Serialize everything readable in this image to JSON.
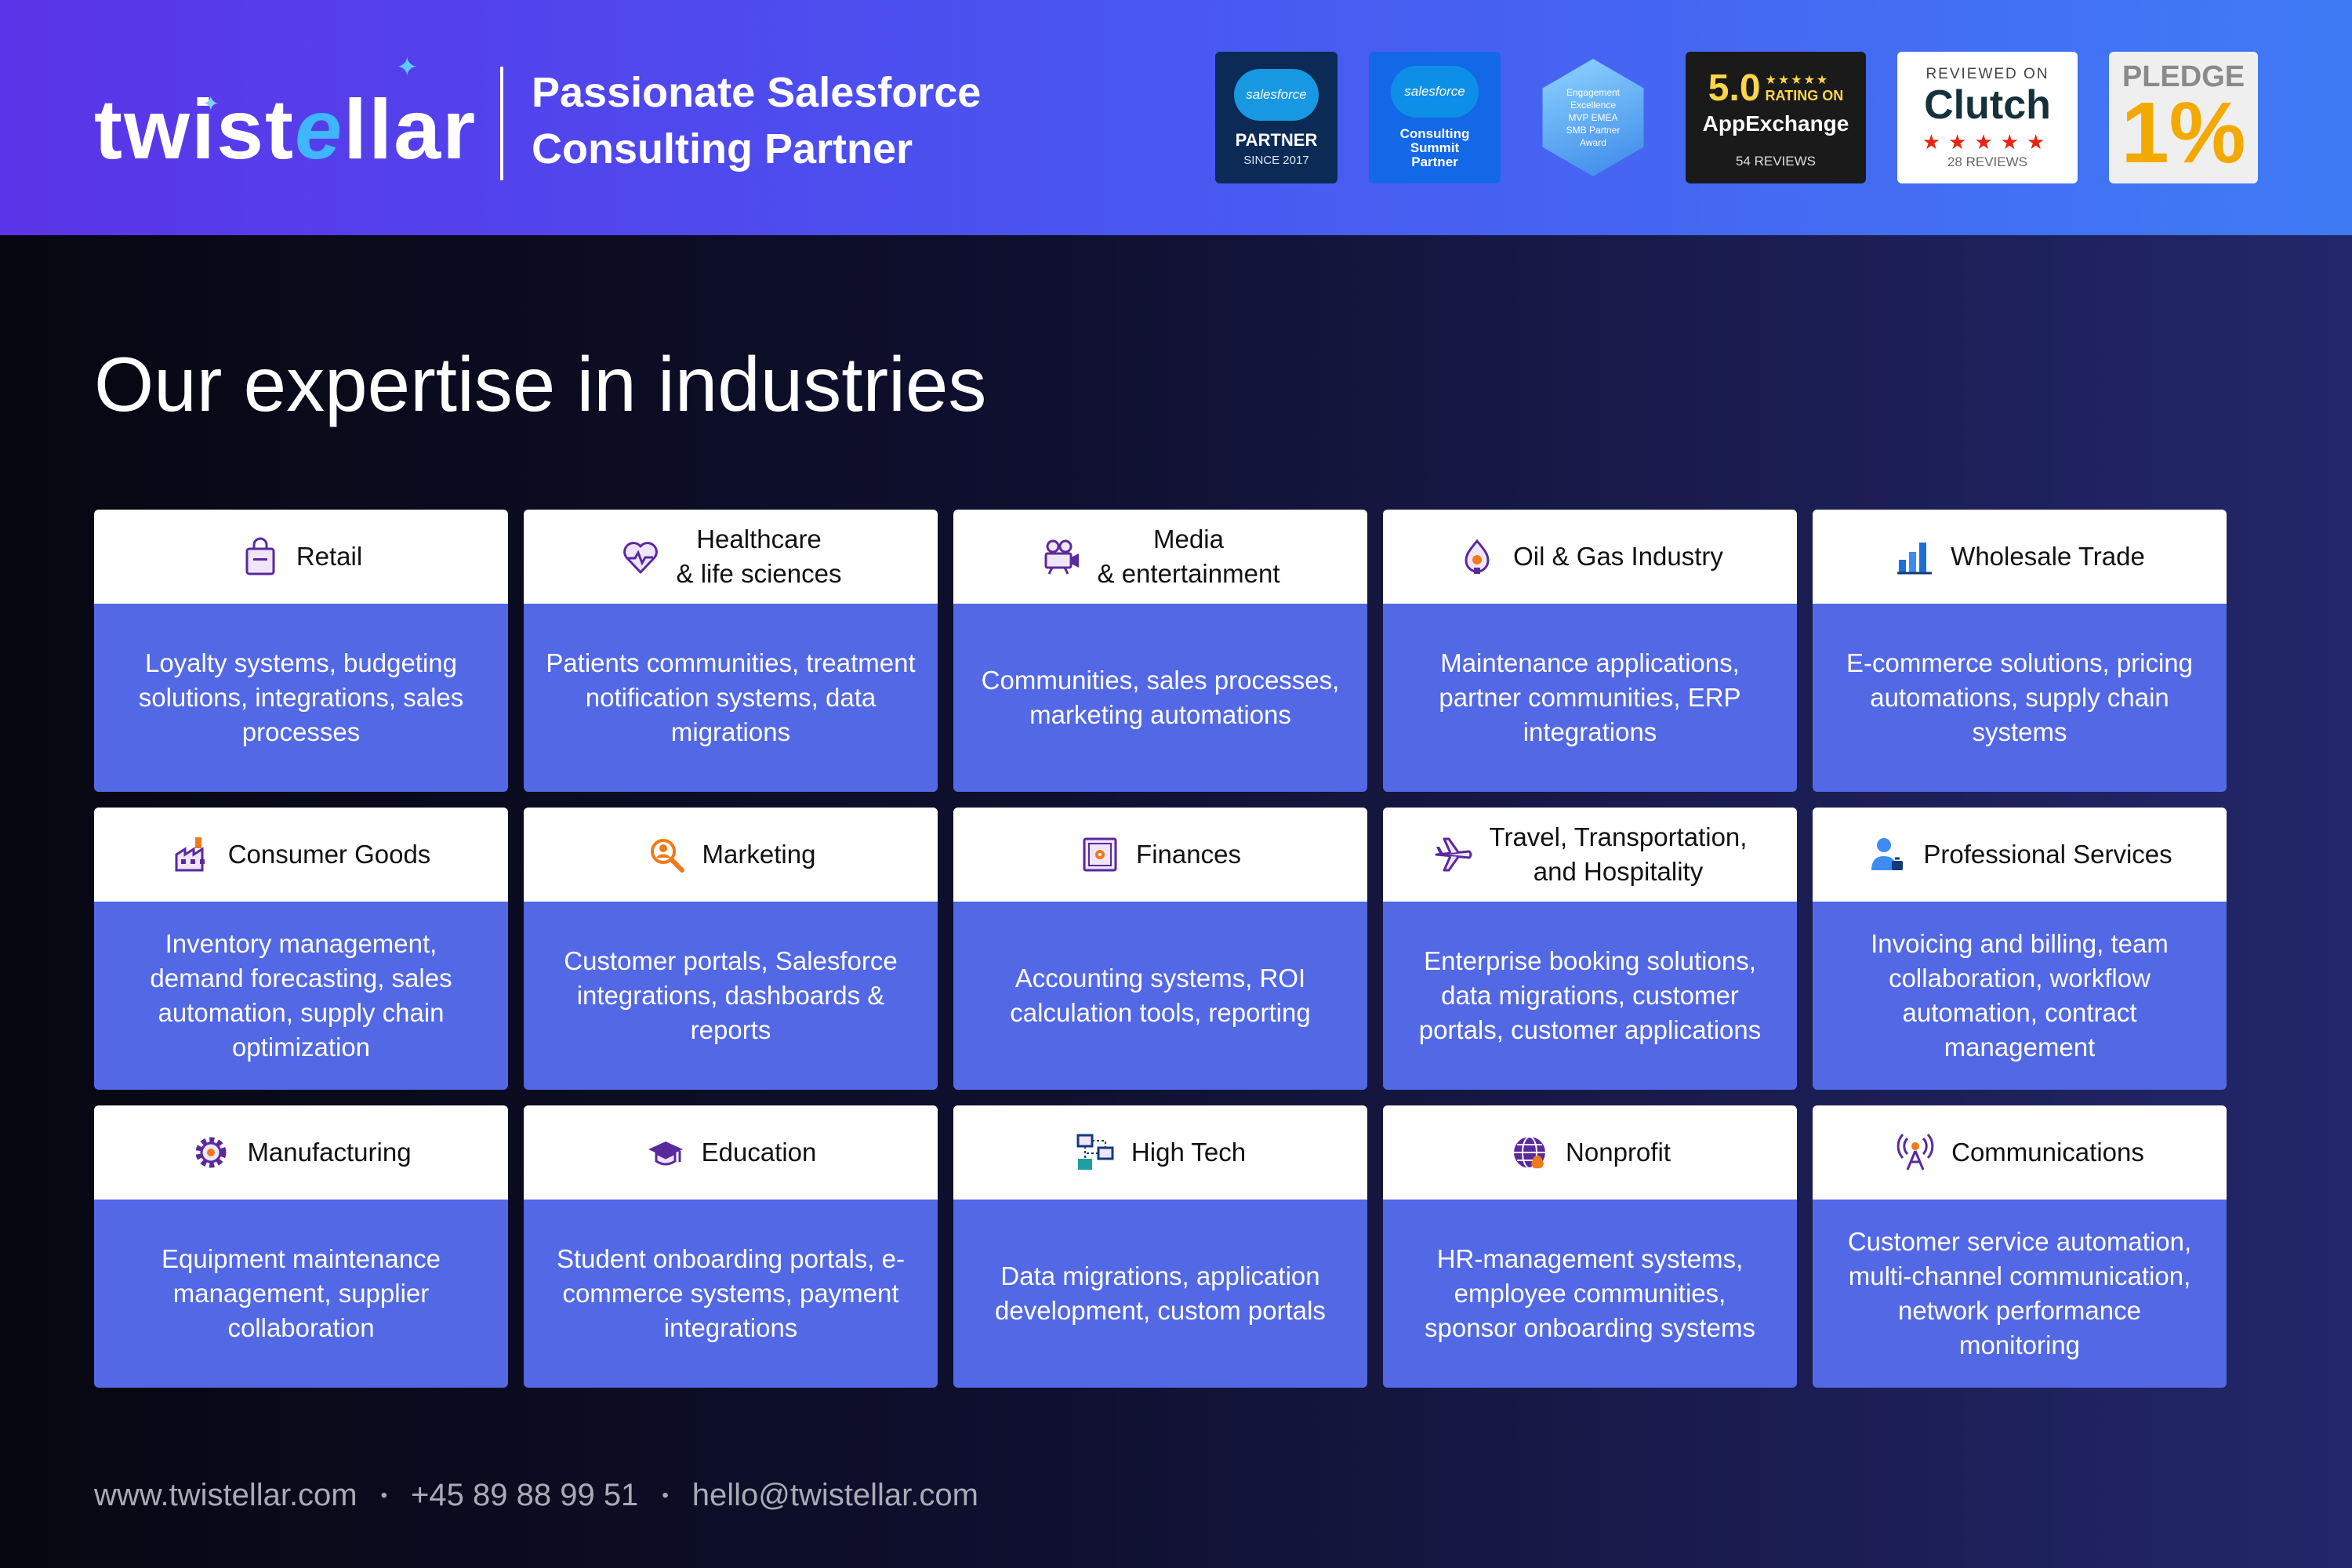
{
  "header": {
    "logo": {
      "prefix": "twist",
      "e": "e",
      "suffix": "llar"
    },
    "tagline_line1": "Passionate Salesforce",
    "tagline_line2": "Consulting Partner",
    "badges": {
      "sf_partner": {
        "cloud": "salesforce",
        "main": "PARTNER",
        "sub": "SINCE 2017"
      },
      "sf_summit": {
        "cloud": "salesforce",
        "line1": "Consulting",
        "line2": "Summit",
        "line3": "Partner"
      },
      "award": {
        "line1": "Engagement",
        "line2": "Excellence",
        "line3": "MVP EMEA",
        "line4": "SMB Partner",
        "line5": "Award"
      },
      "appexchange": {
        "rating": "5.0",
        "stars": "★★★★★",
        "rating_on": "RATING ON",
        "name": "AppExchange",
        "reviews": "54 REVIEWS"
      },
      "clutch": {
        "reviewed_on": "REVIEWED ON",
        "name": "Clutch",
        "stars": "★★★★★",
        "reviews": "28 REVIEWS"
      },
      "pledge": {
        "word": "PLEDGE",
        "value": "1%"
      }
    }
  },
  "title": "Our expertise in industries",
  "cards": [
    {
      "title": "Retail",
      "icon": "shopping-bag-icon",
      "body": "Loyalty systems, budgeting solutions, integrations, sales processes"
    },
    {
      "title": "Healthcare\n& life sciences",
      "icon": "heart-pulse-icon",
      "body": "Patients communities, treatment notification systems, data migrations"
    },
    {
      "title": "Media\n& entertainment",
      "icon": "film-camera-icon",
      "body": "Communities, sales processes, marketing automations"
    },
    {
      "title": "Oil & Gas Industry",
      "icon": "oil-drop-icon",
      "body": "Maintenance applications, partner communities, ERP integrations"
    },
    {
      "title": "Wholesale Trade",
      "icon": "bar-chart-icon",
      "body": "E-commerce solutions, pricing automations, supply chain systems"
    },
    {
      "title": "Consumer Goods",
      "icon": "factory-icon",
      "body": "Inventory management, demand forecasting, sales automation, supply chain optimization"
    },
    {
      "title": "Marketing",
      "icon": "magnifier-icon",
      "body": "Customer portals, Salesforce integrations, dashboards & reports"
    },
    {
      "title": "Finances",
      "icon": "safe-icon",
      "body": "Accounting systems, ROI calculation tools, reporting"
    },
    {
      "title": "Travel, Transportation,\nand Hospitality",
      "icon": "airplane-icon",
      "body": "Enterprise booking solutions, data migrations, customer portals, customer applications"
    },
    {
      "title": "Professional Services",
      "icon": "person-icon",
      "body": "Invoicing and billing, team collaboration, workflow automation, contract management"
    },
    {
      "title": "Manufacturing",
      "icon": "gear-icon",
      "body": "Equipment maintenance management, supplier collaboration"
    },
    {
      "title": "Education",
      "icon": "graduation-cap-icon",
      "body": "Student onboarding portals, e-commerce systems, payment integrations"
    },
    {
      "title": "High Tech",
      "icon": "network-icon",
      "body": "Data migrations, application development, custom portals"
    },
    {
      "title": "Nonprofit",
      "icon": "globe-icon",
      "body": "HR-management systems, employee communities, sponsor onboarding systems"
    },
    {
      "title": "Communications",
      "icon": "antenna-icon",
      "body": "Customer service automation, multi-channel communication, network performance monitoring"
    }
  ],
  "footer": {
    "website": "www.twistellar.com",
    "phone": "+45 89 88 99 51",
    "email": "hello@twistellar.com",
    "separator": "•"
  },
  "colors": {
    "header_start": "#5a34e8",
    "header_end": "#3f7bf5",
    "card_body": "#5368e4",
    "icon_purple": "#5a2a9c",
    "icon_orange": "#f07a1a",
    "icon_blue": "#1e6fd9"
  }
}
